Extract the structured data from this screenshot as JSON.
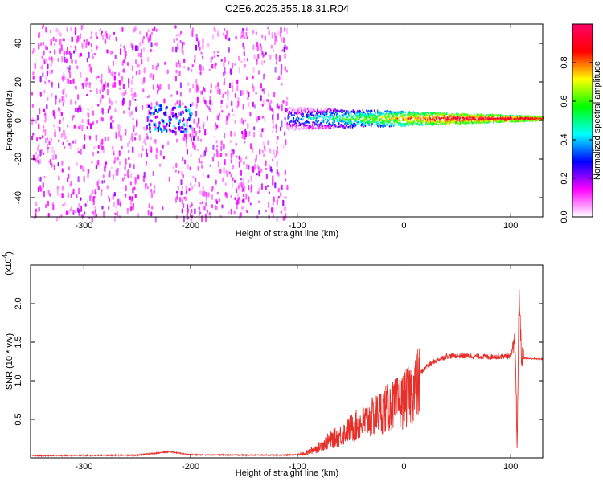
{
  "figure": {
    "title": "C2E6.2025.355.18.31.R04"
  },
  "chart_data": [
    {
      "type": "heatmap",
      "title": "C2E6.2025.355.18.31.R04",
      "xlabel": "Height of straight line (km)",
      "ylabel": "Frequency (Hz)",
      "xlim": [
        -350,
        130
      ],
      "ylim": [
        -50,
        50
      ],
      "xticks": [
        -300,
        -200,
        -100,
        0,
        100
      ],
      "xtick_labels": [
        "-300",
        "-200",
        "-100",
        "0",
        "100"
      ],
      "yticks": [
        -40,
        -20,
        0,
        20,
        40
      ],
      "ytick_labels": [
        "-40",
        "-20",
        "0",
        "20",
        "40"
      ],
      "colorbar": {
        "label": "Normalized spectral amplitude",
        "range": [
          0,
          1
        ],
        "ticks": [
          0.0,
          0.2,
          0.4,
          0.6,
          0.8
        ],
        "tick_labels": [
          "0.0",
          "0.2",
          "0.4",
          "0.6",
          "0.8"
        ],
        "colormap": [
          "#ffffff",
          "#ff00ff",
          "#0000ff",
          "#00ffff",
          "#00ff00",
          "#ffff00",
          "#ff0000",
          "#ff0066"
        ]
      },
      "regions": {
        "noise_band_x": [
          -350,
          -110
        ],
        "noise_amplitude": 0.12,
        "gap_x": [
          -230,
          -215
        ],
        "cluster_at_x": -220,
        "signal_x": [
          -110,
          130
        ],
        "signal_freq_hz": 1.5,
        "signal_amplitude_rising": [
          0.35,
          0.95
        ]
      },
      "grid": false
    },
    {
      "type": "line",
      "xlabel": "Height of straight line (km)",
      "ylabel": "SNR (10 * v/v)",
      "y_multiplier_label": "(x10",
      "y_multiplier_exp": "4",
      "xlim": [
        -350,
        130
      ],
      "ylim": [
        0,
        25000
      ],
      "xticks": [
        -300,
        -200,
        -100,
        0,
        100
      ],
      "xtick_labels": [
        "-300",
        "-200",
        "-100",
        "0",
        "100"
      ],
      "yticks": [
        5000,
        10000,
        15000,
        20000
      ],
      "ytick_labels": [
        "0.5",
        "1.0",
        "1.5",
        "2.0"
      ],
      "color": "#e8302a",
      "series": [
        {
          "x": [
            -350,
            -250,
            -220,
            -200,
            -120,
            -100,
            -90,
            -80,
            -70,
            -60,
            -50,
            -40,
            -30,
            -20,
            -10,
            0,
            10,
            20,
            30,
            40,
            60,
            80,
            100,
            104,
            106,
            108,
            110,
            115,
            130
          ],
          "y": [
            300,
            350,
            800,
            400,
            350,
            400,
            800,
            1500,
            2500,
            3200,
            4200,
            5000,
            5800,
            6800,
            7500,
            8200,
            10000,
            11800,
            12600,
            13200,
            13200,
            13100,
            13200,
            15000,
            1500,
            22000,
            13000,
            12900,
            12800
          ]
        }
      ],
      "grid": false
    }
  ]
}
